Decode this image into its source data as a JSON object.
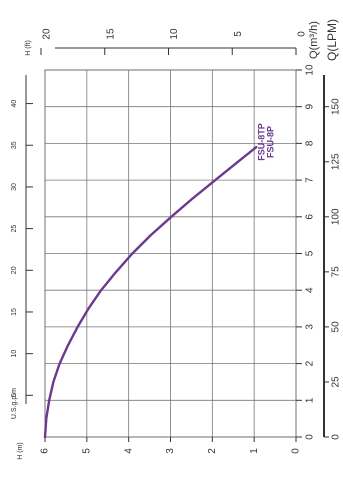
{
  "chart_data": {
    "type": "line",
    "orientation": "rotated-90",
    "x_axis": {
      "label": "Q(m³/h)",
      "min": 0,
      "max": 10,
      "ticks": [
        "0",
        "1",
        "2",
        "3",
        "4",
        "5",
        "6",
        "7",
        "8",
        "9",
        "10"
      ]
    },
    "y_axis": {
      "label": "H (m)",
      "min": 0,
      "max": 6,
      "ticks": [
        "0",
        "1",
        "2",
        "3",
        "4",
        "5",
        "6"
      ]
    },
    "secondary_axes": {
      "head_ft": {
        "label": "H (ft)",
        "ticks": [
          {
            "label": "0",
            "value": 0
          },
          {
            "label": "5",
            "value": 5
          },
          {
            "label": "10",
            "value": 10
          },
          {
            "label": "15",
            "value": 15
          },
          {
            "label": "20",
            "value": 20
          }
        ]
      },
      "flow_usgpm": {
        "label": "U.S.g.p.m",
        "ticks": [
          {
            "label": "5",
            "value": 5
          },
          {
            "label": "10",
            "value": 10
          },
          {
            "label": "15",
            "value": 15
          },
          {
            "label": "20",
            "value": 20
          },
          {
            "label": "25",
            "value": 25
          },
          {
            "label": "30",
            "value": 30
          },
          {
            "label": "35",
            "value": 35
          },
          {
            "label": "40",
            "value": 40
          }
        ]
      },
      "flow_lpm": {
        "label": "Q(LPM)",
        "ticks": [
          {
            "label": "0",
            "value": 0
          },
          {
            "label": "25",
            "value": 25
          },
          {
            "label": "50",
            "value": 50
          },
          {
            "label": "75",
            "value": 75
          },
          {
            "label": "100",
            "value": 100
          },
          {
            "label": "125",
            "value": 125
          },
          {
            "label": "150",
            "value": 150
          }
        ]
      }
    },
    "series": [
      {
        "name": "FSU-8TP / FSU-8P",
        "label_lines": [
          "FSU-8TP",
          "FSU-8P"
        ],
        "color": "#6b3a8f",
        "x": [
          0,
          0.5,
          1,
          1.5,
          2,
          2.5,
          3,
          3.5,
          4,
          4.5,
          5,
          5.5,
          6,
          6.5,
          7,
          7.5,
          7.9
        ],
        "y": [
          6.0,
          5.97,
          5.9,
          5.8,
          5.65,
          5.45,
          5.22,
          4.96,
          4.66,
          4.3,
          3.91,
          3.47,
          2.98,
          2.47,
          1.93,
          1.39,
          0.95
        ]
      }
    ],
    "grid": true
  }
}
